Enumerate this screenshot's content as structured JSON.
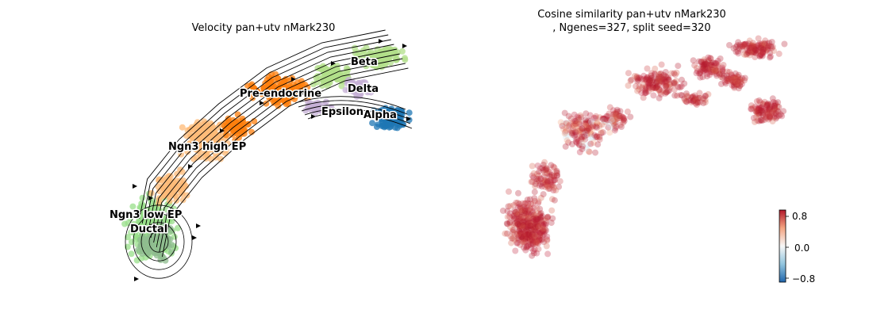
{
  "figure": {
    "left_panel": {
      "title": "Velocity pan+utv nMark230",
      "clusters": [
        {
          "name": "Beta",
          "color": "#b2df8a"
        },
        {
          "name": "Delta",
          "color": "#c5b0d5"
        },
        {
          "name": "Pre-endocrine",
          "color": "#ff7f0e"
        },
        {
          "name": "Epsilon",
          "color": "#c5b0d5"
        },
        {
          "name": "Alpha",
          "color": "#1f77b4"
        },
        {
          "name": "Ngn3 high EP",
          "color": "#ffbb78"
        },
        {
          "name": "Ngn3 low EP",
          "color": "#98df8a"
        },
        {
          "name": "Ductal",
          "color": "#8fbc8f"
        }
      ]
    },
    "right_panel": {
      "title_line1": "Cosine similarity pan+utv nMark230",
      "title_line2": ", Ngenes=327, split seed=320",
      "colorbar": {
        "colormap": "RdBu_r",
        "ticks": [
          "0.8",
          "0.0",
          "−0.8"
        ],
        "range": [
          -1,
          1
        ]
      }
    }
  }
}
